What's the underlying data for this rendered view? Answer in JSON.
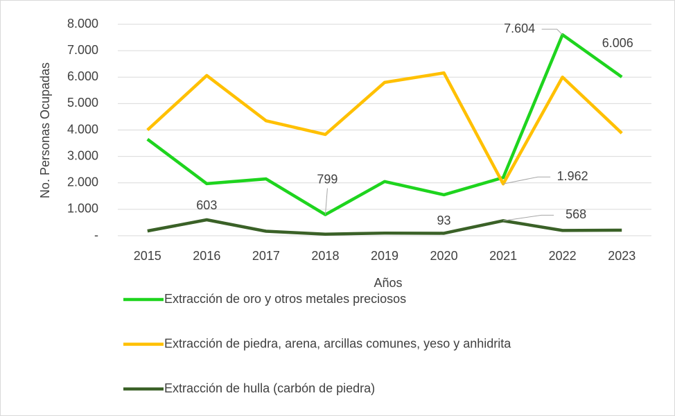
{
  "chart_data": {
    "type": "line",
    "x_label": "Años",
    "y_label": "No. Personas Ocupadas",
    "categories": [
      "2015",
      "2016",
      "2017",
      "2018",
      "2019",
      "2020",
      "2021",
      "2022",
      "2023"
    ],
    "ylim": [
      0,
      8000
    ],
    "yticks": [
      {
        "value": 0,
        "label": "-"
      },
      {
        "value": 1000,
        "label": "1.000"
      },
      {
        "value": 2000,
        "label": "2.000"
      },
      {
        "value": 3000,
        "label": "3.000"
      },
      {
        "value": 4000,
        "label": "4.000"
      },
      {
        "value": 5000,
        "label": "5.000"
      },
      {
        "value": 6000,
        "label": "6.000"
      },
      {
        "value": 7000,
        "label": "7.000"
      },
      {
        "value": 8000,
        "label": "8.000"
      }
    ],
    "grid": true,
    "legend": "bottom",
    "series": [
      {
        "name": "Extracción de oro y otros metales preciosos",
        "color": "#1ed41e",
        "values": [
          3650,
          1970,
          2150,
          799,
          2050,
          1550,
          2200,
          7604,
          6006
        ],
        "value_labels": [
          null,
          null,
          null,
          "799",
          null,
          null,
          null,
          "7.604",
          "6.006"
        ]
      },
      {
        "name": "Extracción de piedra, arena, arcillas comunes, yeso y anhidrita",
        "color": "#ffc000",
        "values": [
          4000,
          6060,
          4350,
          3830,
          5800,
          6160,
          1962,
          6000,
          3880
        ],
        "value_labels": [
          null,
          null,
          null,
          null,
          null,
          null,
          "1.962",
          null,
          null
        ]
      },
      {
        "name": "Extracción de hulla (carbón de piedra)",
        "color": "#3a6127",
        "values": [
          180,
          603,
          170,
          60,
          100,
          93,
          568,
          200,
          210
        ],
        "value_labels": [
          null,
          "603",
          null,
          null,
          null,
          "93",
          "568",
          null,
          null
        ]
      }
    ]
  }
}
